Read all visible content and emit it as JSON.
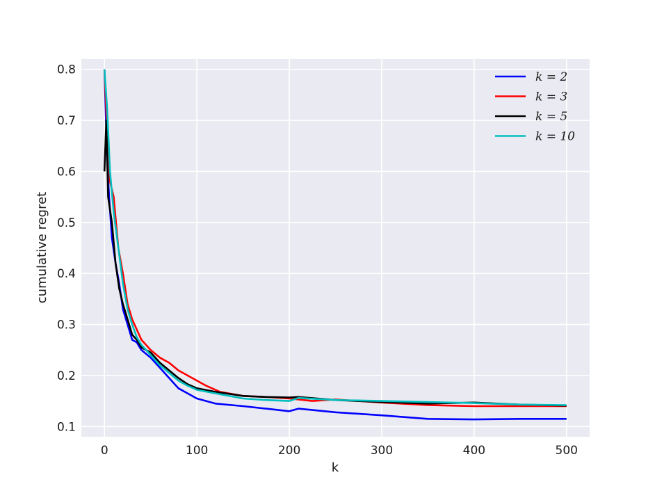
{
  "chart_data": {
    "type": "line",
    "title": "",
    "xlabel": "k",
    "ylabel": "cumulative regret",
    "xlim": [
      -25,
      525
    ],
    "ylim": [
      0.08,
      0.82
    ],
    "xticks": [
      0,
      100,
      200,
      300,
      400,
      500
    ],
    "yticks": [
      0.1,
      0.2,
      0.3,
      0.4,
      0.5,
      0.6,
      0.7,
      0.8
    ],
    "grid": true,
    "legend": "top-right",
    "series": [
      {
        "name": "k = 2",
        "color": "#0000ff",
        "points": [
          [
            0,
            0.8
          ],
          [
            3,
            0.62
          ],
          [
            5,
            0.55
          ],
          [
            8,
            0.47
          ],
          [
            12,
            0.42
          ],
          [
            16,
            0.38
          ],
          [
            20,
            0.33
          ],
          [
            25,
            0.3
          ],
          [
            30,
            0.27
          ],
          [
            35,
            0.265
          ],
          [
            40,
            0.25
          ],
          [
            50,
            0.235
          ],
          [
            60,
            0.215
          ],
          [
            70,
            0.195
          ],
          [
            80,
            0.175
          ],
          [
            90,
            0.165
          ],
          [
            100,
            0.155
          ],
          [
            120,
            0.145
          ],
          [
            150,
            0.14
          ],
          [
            175,
            0.135
          ],
          [
            200,
            0.13
          ],
          [
            210,
            0.135
          ],
          [
            250,
            0.128
          ],
          [
            300,
            0.122
          ],
          [
            350,
            0.115
          ],
          [
            400,
            0.114
          ],
          [
            450,
            0.115
          ],
          [
            500,
            0.115
          ]
        ]
      },
      {
        "name": "k = 3",
        "color": "#ff0000",
        "points": [
          [
            0,
            0.8
          ],
          [
            3,
            0.68
          ],
          [
            6,
            0.58
          ],
          [
            10,
            0.55
          ],
          [
            15,
            0.45
          ],
          [
            20,
            0.4
          ],
          [
            25,
            0.34
          ],
          [
            30,
            0.31
          ],
          [
            35,
            0.29
          ],
          [
            40,
            0.27
          ],
          [
            50,
            0.25
          ],
          [
            60,
            0.235
          ],
          [
            70,
            0.225
          ],
          [
            80,
            0.21
          ],
          [
            90,
            0.2
          ],
          [
            100,
            0.19
          ],
          [
            110,
            0.18
          ],
          [
            125,
            0.168
          ],
          [
            150,
            0.16
          ],
          [
            175,
            0.158
          ],
          [
            200,
            0.155
          ],
          [
            225,
            0.15
          ],
          [
            250,
            0.153
          ],
          [
            300,
            0.147
          ],
          [
            350,
            0.142
          ],
          [
            400,
            0.14
          ],
          [
            450,
            0.14
          ],
          [
            500,
            0.14
          ]
        ]
      },
      {
        "name": "k = 5",
        "color": "#000000",
        "points": [
          [
            0,
            0.6
          ],
          [
            2,
            0.7
          ],
          [
            4,
            0.55
          ],
          [
            8,
            0.5
          ],
          [
            12,
            0.42
          ],
          [
            16,
            0.37
          ],
          [
            20,
            0.34
          ],
          [
            25,
            0.31
          ],
          [
            30,
            0.28
          ],
          [
            35,
            0.27
          ],
          [
            40,
            0.255
          ],
          [
            50,
            0.245
          ],
          [
            60,
            0.225
          ],
          [
            70,
            0.21
          ],
          [
            80,
            0.195
          ],
          [
            90,
            0.183
          ],
          [
            100,
            0.175
          ],
          [
            120,
            0.168
          ],
          [
            150,
            0.16
          ],
          [
            175,
            0.158
          ],
          [
            200,
            0.157
          ],
          [
            210,
            0.158
          ],
          [
            250,
            0.152
          ],
          [
            300,
            0.148
          ],
          [
            350,
            0.145
          ],
          [
            400,
            0.147
          ],
          [
            450,
            0.143
          ],
          [
            500,
            0.141
          ]
        ]
      },
      {
        "name": "k = 10",
        "color": "#00bfbf",
        "points": [
          [
            0,
            0.8
          ],
          [
            3,
            0.72
          ],
          [
            6,
            0.6
          ],
          [
            10,
            0.52
          ],
          [
            15,
            0.45
          ],
          [
            20,
            0.38
          ],
          [
            25,
            0.33
          ],
          [
            30,
            0.3
          ],
          [
            35,
            0.275
          ],
          [
            40,
            0.26
          ],
          [
            50,
            0.24
          ],
          [
            60,
            0.22
          ],
          [
            70,
            0.205
          ],
          [
            80,
            0.19
          ],
          [
            90,
            0.18
          ],
          [
            100,
            0.172
          ],
          [
            120,
            0.165
          ],
          [
            150,
            0.155
          ],
          [
            175,
            0.152
          ],
          [
            200,
            0.15
          ],
          [
            210,
            0.156
          ],
          [
            250,
            0.152
          ],
          [
            300,
            0.15
          ],
          [
            350,
            0.148
          ],
          [
            400,
            0.146
          ],
          [
            450,
            0.143
          ],
          [
            500,
            0.142
          ]
        ]
      }
    ]
  }
}
